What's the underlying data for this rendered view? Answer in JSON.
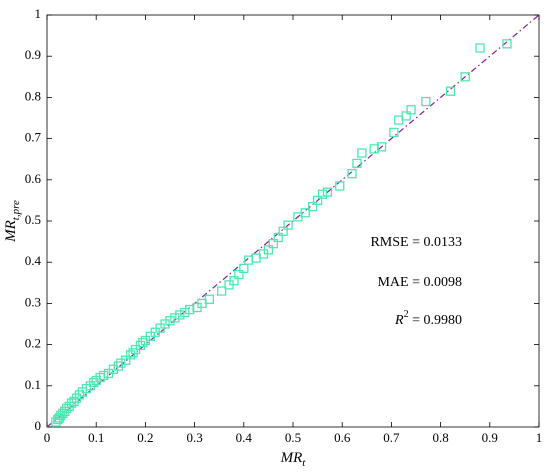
{
  "chart_data": {
    "type": "scatter",
    "xlabel": {
      "main": "MR",
      "sub": "t"
    },
    "ylabel": {
      "main": "MR",
      "sub": "t,pre"
    },
    "annotations": {
      "rmse": "RMSE = 0.0133",
      "mae": "MAE = 0.0098",
      "r2": {
        "main": "R",
        "sup": "2",
        "rest": " = 0.9980"
      }
    },
    "xlim": [
      0,
      1
    ],
    "ylim": [
      0,
      1
    ],
    "xticks": [
      0,
      0.1,
      0.2,
      0.3,
      0.4,
      0.5,
      0.6,
      0.7,
      0.8,
      0.9,
      1
    ],
    "yticks": [
      0,
      0.1,
      0.2,
      0.3,
      0.4,
      0.5,
      0.6,
      0.7,
      0.8,
      0.9,
      1
    ],
    "reference_line": {
      "x": [
        0,
        1
      ],
      "y": [
        0,
        1
      ],
      "color": "#7b1fa2"
    },
    "series": [
      {
        "color": "#4fe6b2",
        "x": [
          0.018,
          0.022,
          0.025,
          0.028,
          0.032,
          0.036,
          0.04,
          0.045,
          0.05,
          0.055,
          0.06,
          0.066,
          0.072,
          0.08,
          0.088,
          0.095,
          0.1,
          0.108,
          0.115,
          0.125,
          0.135,
          0.145,
          0.15,
          0.16,
          0.17,
          0.175,
          0.18,
          0.19,
          0.195,
          0.2,
          0.21,
          0.22,
          0.23,
          0.24,
          0.25,
          0.26,
          0.27,
          0.28,
          0.29,
          0.305,
          0.315,
          0.33,
          0.355,
          0.37,
          0.38,
          0.39,
          0.4,
          0.41,
          0.425,
          0.44,
          0.45,
          0.46,
          0.47,
          0.48,
          0.49,
          0.51,
          0.525,
          0.54,
          0.55,
          0.56,
          0.57,
          0.595,
          0.62,
          0.63,
          0.64,
          0.665,
          0.68,
          0.705,
          0.715,
          0.73,
          0.74,
          0.77,
          0.82,
          0.85,
          0.88,
          0.935
        ],
        "y": [
          0.012,
          0.018,
          0.022,
          0.028,
          0.033,
          0.038,
          0.045,
          0.05,
          0.058,
          0.062,
          0.07,
          0.078,
          0.085,
          0.093,
          0.1,
          0.108,
          0.113,
          0.12,
          0.125,
          0.13,
          0.14,
          0.148,
          0.155,
          0.162,
          0.175,
          0.18,
          0.188,
          0.198,
          0.205,
          0.21,
          0.22,
          0.23,
          0.24,
          0.25,
          0.258,
          0.265,
          0.272,
          0.278,
          0.285,
          0.29,
          0.3,
          0.31,
          0.33,
          0.345,
          0.355,
          0.37,
          0.385,
          0.405,
          0.41,
          0.42,
          0.43,
          0.445,
          0.46,
          0.475,
          0.49,
          0.51,
          0.52,
          0.535,
          0.55,
          0.565,
          0.57,
          0.585,
          0.615,
          0.64,
          0.665,
          0.675,
          0.68,
          0.715,
          0.745,
          0.755,
          0.77,
          0.79,
          0.815,
          0.85,
          0.92,
          0.93
        ]
      }
    ]
  }
}
